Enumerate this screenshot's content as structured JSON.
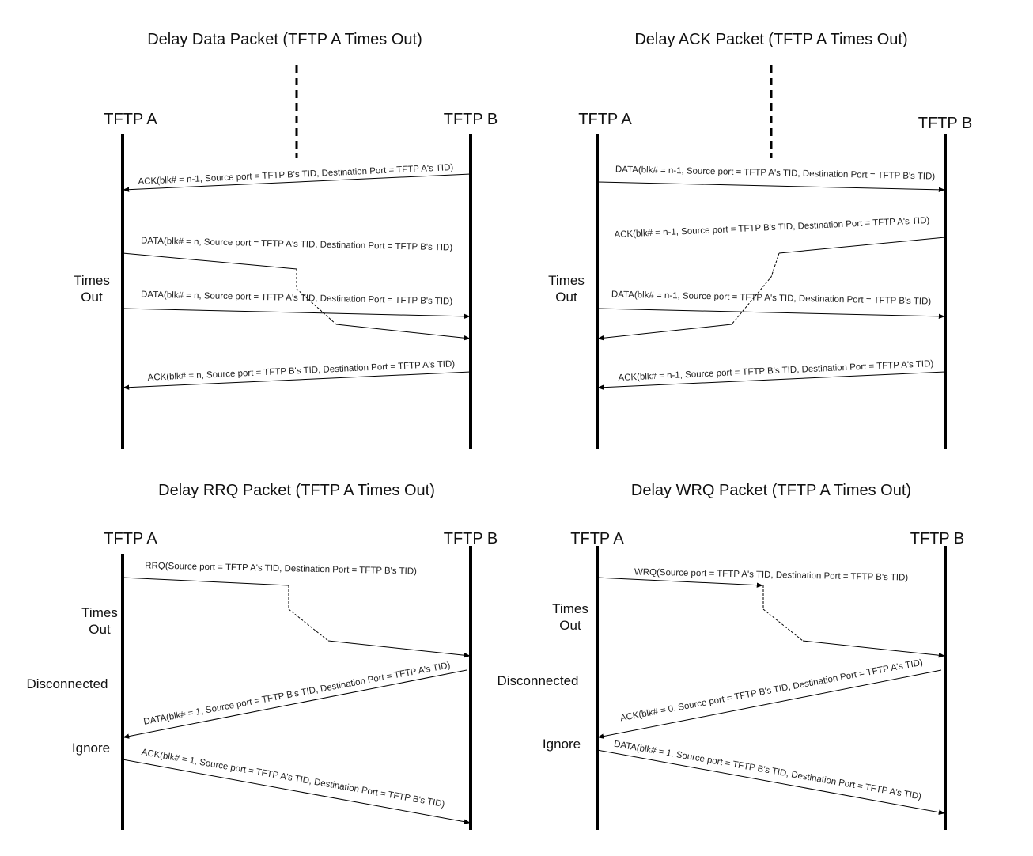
{
  "diagrams": [
    {
      "title": "Delay Data Packet (TFTP A Times Out)",
      "host_a": "TFTP A",
      "host_b": "TFTP B",
      "notes": [
        "Times",
        "Out"
      ],
      "messages": [
        "ACK(blk# = n-1, Source port = TFTP B's TID, Destination Port = TFTP A's TID)",
        "DATA(blk# = n, Source port = TFTP A's TID, Destination Port = TFTP B's TID)",
        "DATA(blk# = n, Source port = TFTP A's TID, Destination Port = TFTP B's TID)",
        "ACK(blk# = n, Source port = TFTP B's TID, Destination Port = TFTP A's TID)"
      ]
    },
    {
      "title": "Delay ACK Packet (TFTP A Times Out)",
      "host_a": "TFTP A",
      "host_b": "TFTP B",
      "notes": [
        "Times",
        "Out"
      ],
      "messages": [
        "DATA(blk# = n-1, Source port = TFTP A's TID, Destination Port = TFTP B's TID)",
        "ACK(blk# = n-1, Source port = TFTP B's TID, Destination Port = TFTP A's TID)",
        "DATA(blk# = n-1, Source port = TFTP A's TID, Destination Port = TFTP B's TID)",
        "ACK(blk# = n-1, Source port = TFTP B's TID, Destination Port = TFTP A's TID)"
      ]
    },
    {
      "title": "Delay RRQ Packet (TFTP A Times Out)",
      "host_a": "TFTP A",
      "host_b": "TFTP B",
      "notes": [
        "Times",
        "Out",
        "Disconnected",
        "Ignore"
      ],
      "messages": [
        "RRQ(Source port = TFTP A's TID, Destination Port = TFTP B's TID)",
        "DATA(blk# = 1, Source port = TFTP B's TID, Destination Port = TFTP A's TID)",
        "ACK(blk# = 1, Source port = TFTP A's TID, Destination Port = TFTP B's TID)"
      ]
    },
    {
      "title": "Delay WRQ Packet (TFTP A Times Out)",
      "host_a": "TFTP A",
      "host_b": "TFTP B",
      "notes": [
        "Times",
        "Out",
        "Disconnected",
        "Ignore"
      ],
      "messages": [
        "WRQ(Source port = TFTP A's TID, Destination Port = TFTP B's TID)",
        "ACK(blk# = 0, Source port = TFTP B's TID, Destination Port = TFTP A's TID)",
        "DATA(blk# = 1, Source port = TFTP B's TID, Destination Port = TFTP A's TID)"
      ]
    }
  ]
}
